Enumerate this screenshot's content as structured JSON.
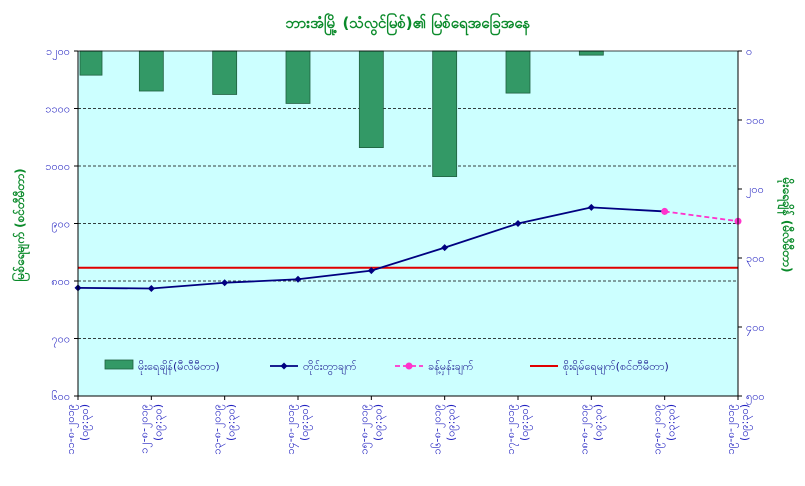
{
  "chart_data": {
    "type": "bar+line",
    "title": "ဘားအံမြို့ (သံလွင်မြစ်)၏ မြစ်ရေအခြေအနေ",
    "ylabel_left": "မြစ်ရေမျက် (စင်တီမီတာ)",
    "ylabel_right": "မိုးရေချိန် (မီလီမီတာ)",
    "categories": [
      [
        "၁၁-၈-၂၀၁၉",
        "(၀၉:၃၀)"
      ],
      [
        "၁၂-၈-၂၀၁၉",
        "(၀၉:၃၀)"
      ],
      [
        "၁၃-၈-၂၀၁၉",
        "(၀၉:၃၀)"
      ],
      [
        "၁၄-၈-၂၀၁၉",
        "(၀၉:၃၀)"
      ],
      [
        "၁၅-၈-၂၀၁၉",
        "(၀၉:၃၀)"
      ],
      [
        "၁၆-၈-၂၀၁၉",
        "(၀၉:၃၀)"
      ],
      [
        "၁၇-၈-၂၀၁၉",
        "(၀၉:၃၀)"
      ],
      [
        "၁၈-၈-၂၀၁၉",
        "(၀၉:၃၀)"
      ],
      [
        "၁၉-၈-၂၀၁၉",
        "(၀၃:၃၀)"
      ],
      [
        "၁၉-၈-၂၀၁၉",
        "(၀၉:၃၀)"
      ]
    ],
    "y_left": {
      "min": 600,
      "max": 1200,
      "step": 100,
      "ticks": [
        "၆၀၀",
        "၇၀၀",
        "၈၀၀",
        "၉၀၀",
        "၁၀၀၀",
        "၁၁၀၀",
        "၁၂၀၀"
      ]
    },
    "y_right": {
      "min": 0,
      "max": 500,
      "step": 100,
      "inverted": true,
      "ticks": [
        "၀",
        "၁၀၀",
        "၂၀၀",
        "၃၀၀",
        "၄၀၀",
        "၅၀၀"
      ]
    },
    "grid": true,
    "legend_position": "bottom",
    "series": [
      {
        "name": "မိုးရေချိန်(မီလီမီတာ)",
        "type": "bar",
        "axis": "right",
        "color": "#339966",
        "values": [
          35,
          58,
          63,
          76,
          140,
          182,
          61,
          6,
          null,
          null
        ]
      },
      {
        "name": "တိုင်းတွာချက်",
        "type": "line",
        "axis": "left",
        "color": "#000080",
        "marker": "diamond",
        "values": [
          788,
          787,
          797,
          803,
          818,
          858,
          900,
          928,
          921,
          null
        ]
      },
      {
        "name": "ခန့်မှန်းချက်",
        "type": "line",
        "axis": "left",
        "color": "#ff33cc",
        "dashed": true,
        "marker": "circle",
        "values": [
          null,
          null,
          null,
          null,
          null,
          null,
          null,
          null,
          921,
          904
        ]
      },
      {
        "name": "စိုးရိမ်ရေမျက်(စင်တီမီတာ)",
        "type": "hline",
        "axis": "left",
        "color": "#e00000",
        "value": 823
      }
    ]
  }
}
